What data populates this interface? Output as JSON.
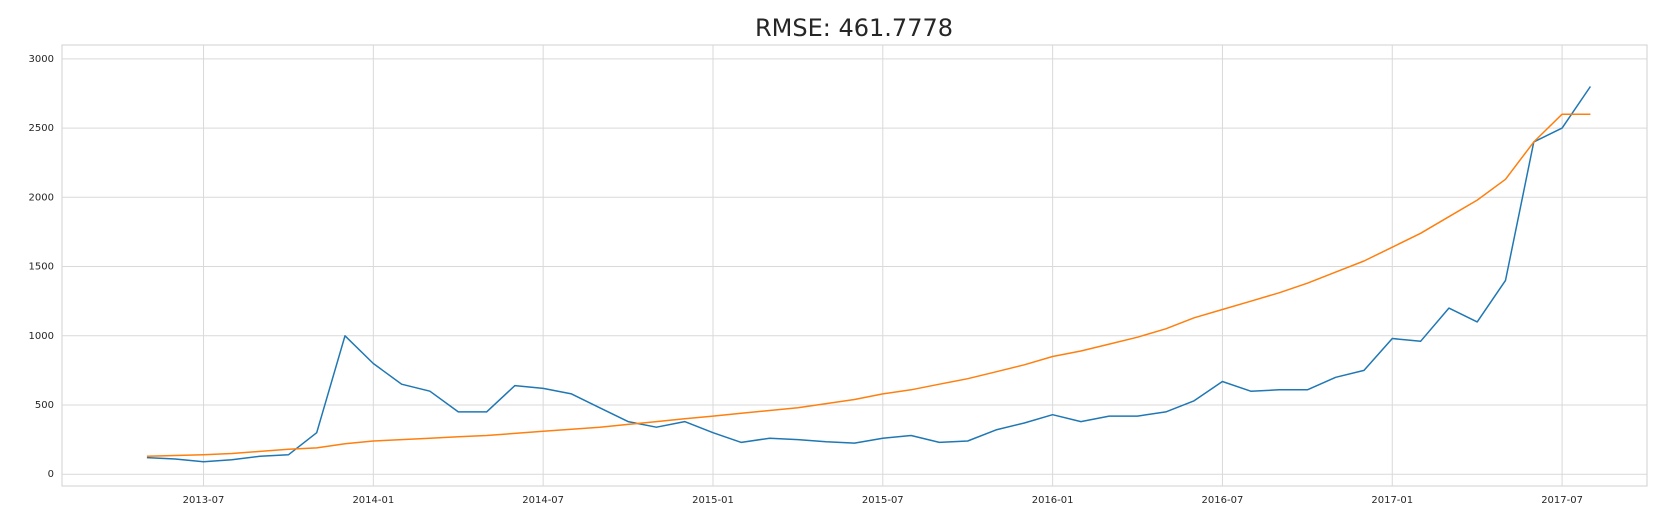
{
  "chart_data": {
    "type": "line",
    "title": "RMSE: 461.7778",
    "x": [
      "2013-05",
      "2013-06",
      "2013-07",
      "2013-08",
      "2013-09",
      "2013-10",
      "2013-11",
      "2013-12",
      "2014-01",
      "2014-02",
      "2014-03",
      "2014-04",
      "2014-05",
      "2014-06",
      "2014-07",
      "2014-08",
      "2014-09",
      "2014-10",
      "2014-11",
      "2014-12",
      "2015-01",
      "2015-02",
      "2015-03",
      "2015-04",
      "2015-05",
      "2015-06",
      "2015-07",
      "2015-08",
      "2015-09",
      "2015-10",
      "2015-11",
      "2015-12",
      "2016-01",
      "2016-02",
      "2016-03",
      "2016-04",
      "2016-05",
      "2016-06",
      "2016-07",
      "2016-08",
      "2016-09",
      "2016-10",
      "2016-11",
      "2016-12",
      "2017-01",
      "2017-02",
      "2017-03",
      "2017-04",
      "2017-05",
      "2017-06",
      "2017-07",
      "2017-08"
    ],
    "series": [
      {
        "color": "#1f77b4",
        "values": [
          120,
          110,
          90,
          105,
          130,
          140,
          300,
          1000,
          800,
          650,
          600,
          450,
          450,
          640,
          620,
          580,
          480,
          380,
          340,
          380,
          300,
          230,
          260,
          250,
          235,
          225,
          260,
          280,
          230,
          240,
          320,
          370,
          430,
          380,
          420,
          420,
          450,
          530,
          670,
          600,
          610,
          610,
          700,
          750,
          980,
          960,
          1200,
          1100,
          1400,
          2400,
          2500,
          2800
        ]
      },
      {
        "color": "#ff7f0e",
        "values": [
          130,
          135,
          140,
          150,
          165,
          180,
          190,
          220,
          240,
          250,
          260,
          270,
          280,
          295,
          310,
          325,
          340,
          360,
          380,
          400,
          420,
          440,
          460,
          480,
          510,
          540,
          580,
          610,
          650,
          690,
          740,
          790,
          850,
          890,
          940,
          990,
          1050,
          1130,
          1190,
          1250,
          1310,
          1380,
          1460,
          1540,
          1640,
          1740,
          1860,
          1980,
          2130,
          2400,
          2600,
          2600
        ]
      }
    ],
    "xlim": [
      "2013-02",
      "2017-10"
    ],
    "xticks": [
      "2013-07",
      "2014-01",
      "2014-07",
      "2015-01",
      "2015-07",
      "2016-01",
      "2016-07",
      "2017-01",
      "2017-07"
    ],
    "ylim": [
      -85,
      3100
    ],
    "yticks": [
      0,
      500,
      1000,
      1500,
      2000,
      2500,
      3000
    ],
    "grid": true
  }
}
